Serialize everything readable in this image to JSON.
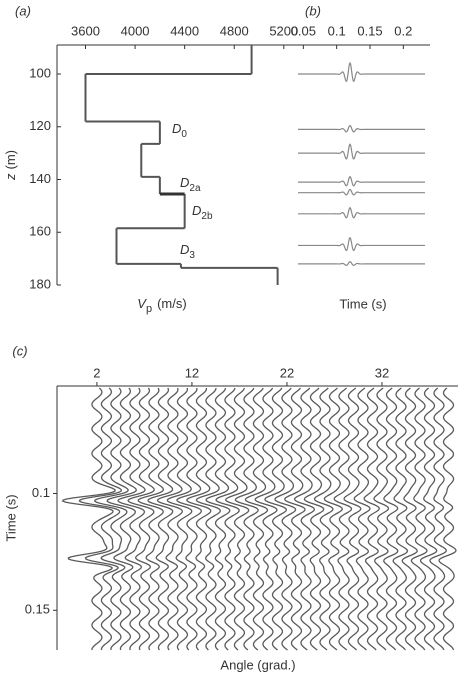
{
  "chart_data": [
    {
      "type": "step-profile",
      "label": "(a)",
      "x_label": {
        "symbol": "V",
        "sub": "p",
        "unit": "(m/s)"
      },
      "y_label": {
        "symbol": "z",
        "unit": "(m)"
      },
      "xlim": [
        3370,
        5250
      ],
      "xticks": [
        3600,
        4000,
        4400,
        4800,
        5200
      ],
      "ylim": [
        89,
        180
      ],
      "yticks": [
        100,
        120,
        140,
        160,
        180
      ],
      "y_inverted": true,
      "color": "#555555",
      "depth": [
        89,
        100,
        118,
        126.5,
        139,
        145.5,
        158.5,
        172,
        173.5,
        180
      ],
      "vp": [
        4940,
        3600,
        4200,
        4050,
        4200,
        4400,
        3850,
        4370,
        5150
      ],
      "annotations": [
        {
          "text": "D",
          "sub": "0"
        },
        {
          "text": "D",
          "sub": "2a"
        },
        {
          "text": "D",
          "sub": "2b"
        },
        {
          "text": "D",
          "sub": "3"
        }
      ]
    },
    {
      "type": "wiggle-traces",
      "label": "(b)",
      "x_label": "Time (s)",
      "xlim": [
        0.03,
        0.24
      ],
      "xticks": [
        0.05,
        0.1,
        0.15,
        0.2
      ],
      "color": "#888888",
      "arrival_time": 0.12,
      "trace_depths": [
        100,
        121,
        130,
        141,
        145,
        153,
        165,
        172
      ],
      "amplitudes": [
        1.0,
        0.35,
        0.8,
        0.5,
        0.3,
        0.55,
        0.7,
        0.2
      ]
    },
    {
      "type": "gather",
      "label": "(c)",
      "x_label": "Angle (grad.)",
      "y_label": "Time (s)",
      "xlim": [
        -2.2,
        40
      ],
      "xticks": [
        2,
        12,
        22,
        32
      ],
      "ylim": [
        0.054,
        0.167
      ],
      "yticks": [
        0.1,
        0.15
      ],
      "y_inverted": true,
      "color": "#5a5a5a",
      "event_times": [
        0.103,
        0.128
      ],
      "angles": [
        2,
        3,
        4,
        5,
        6,
        7,
        8,
        9,
        10,
        11,
        12,
        13,
        14,
        15,
        16,
        17,
        18,
        19,
        20,
        21,
        22,
        23,
        24,
        25,
        26,
        27,
        28,
        29,
        30,
        31,
        32,
        33,
        34,
        35,
        36,
        37,
        38,
        39
      ],
      "amplitudes": [
        1.0,
        0.75,
        0.55,
        0.45,
        0.4,
        0.38,
        0.36,
        0.35,
        0.35,
        0.34,
        0.34,
        0.33,
        0.33,
        0.33,
        0.32,
        0.32,
        0.32,
        0.31,
        0.31,
        0.31,
        0.3,
        0.3,
        0.3,
        0.3,
        0.29,
        0.29,
        0.29,
        0.29,
        0.28,
        0.28,
        0.28,
        0.28,
        0.27,
        0.27,
        0.27,
        0.27,
        0.26,
        0.26
      ]
    }
  ]
}
